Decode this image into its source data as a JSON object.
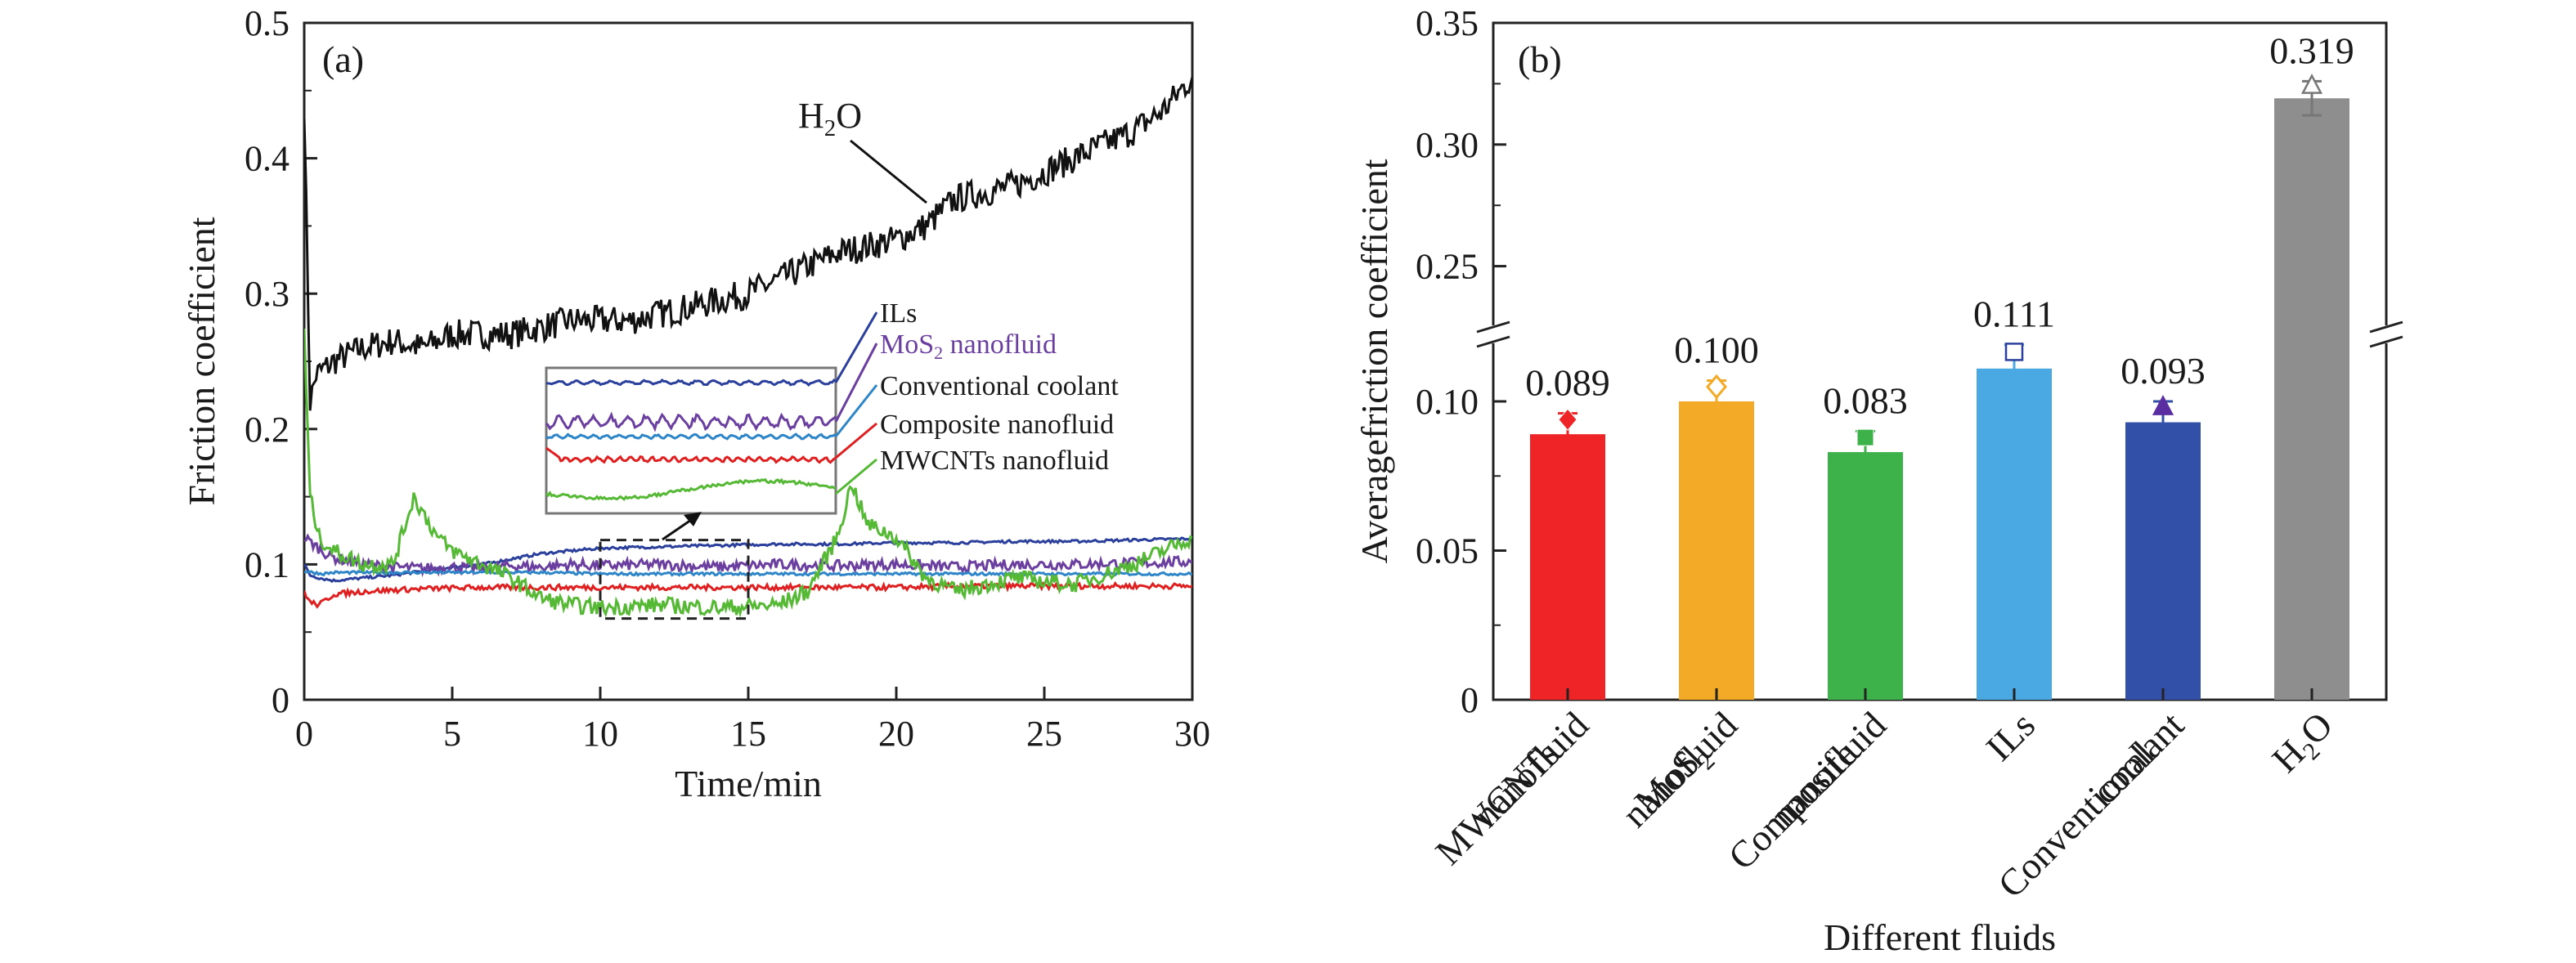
{
  "chart_data": [
    {
      "panel": "(a)",
      "type": "line",
      "xlabel": "Time/min",
      "ylabel": "Friction coefficient",
      "xlim": [
        0,
        30
      ],
      "ylim": [
        0,
        0.5
      ],
      "xticks": [
        "0",
        "5",
        "10",
        "15",
        "20",
        "25",
        "30"
      ],
      "yticks": [
        "0",
        "0.1",
        "0.2",
        "0.3",
        "0.4",
        "0.5"
      ],
      "grid": false,
      "series": [
        {
          "name": "H2O",
          "label_main": "H",
          "label_sub": "2",
          "label_end": "O",
          "color": "#111111",
          "x": [
            0,
            0.2,
            0.4,
            1,
            2,
            3,
            4,
            5,
            6,
            7,
            8,
            9,
            10,
            11,
            12,
            13,
            14,
            15,
            16,
            17,
            18,
            19,
            20,
            21,
            22,
            23,
            24,
            25,
            26,
            27,
            28,
            29,
            30
          ],
          "y": [
            0.44,
            0.22,
            0.24,
            0.25,
            0.26,
            0.265,
            0.26,
            0.27,
            0.27,
            0.27,
            0.275,
            0.28,
            0.28,
            0.28,
            0.285,
            0.29,
            0.295,
            0.3,
            0.31,
            0.32,
            0.33,
            0.335,
            0.34,
            0.35,
            0.37,
            0.375,
            0.38,
            0.39,
            0.4,
            0.41,
            0.42,
            0.435,
            0.46
          ]
        },
        {
          "name": "ILs",
          "color": "#2b3f9c",
          "x": [
            0,
            0.2,
            0.5,
            1,
            2,
            3,
            4,
            5,
            6,
            7,
            8,
            9,
            10,
            12,
            14,
            16,
            18,
            20,
            22,
            24,
            26,
            28,
            30
          ],
          "y": [
            0.1,
            0.092,
            0.09,
            0.088,
            0.09,
            0.092,
            0.095,
            0.098,
            0.1,
            0.104,
            0.108,
            0.11,
            0.112,
            0.113,
            0.114,
            0.115,
            0.115,
            0.116,
            0.116,
            0.117,
            0.117,
            0.118,
            0.119
          ]
        },
        {
          "name": "MoS2 nanofluid",
          "label_main": "MoS",
          "label_sub": "2",
          "label_end": " nanofluid",
          "color": "#6b3fa0",
          "x": [
            0,
            0.3,
            0.6,
            1,
            2,
            3,
            4,
            5,
            6,
            7,
            8,
            9,
            10,
            12,
            14,
            16,
            18,
            20,
            22,
            24,
            26,
            28,
            30
          ],
          "y": [
            0.12,
            0.115,
            0.11,
            0.105,
            0.1,
            0.098,
            0.097,
            0.098,
            0.097,
            0.099,
            0.098,
            0.1,
            0.099,
            0.1,
            0.098,
            0.1,
            0.099,
            0.1,
            0.098,
            0.1,
            0.1,
            0.101,
            0.102
          ]
        },
        {
          "name": "Conventional coolant",
          "color": "#2e86c8",
          "x": [
            0,
            0.3,
            0.6,
            1,
            2,
            4,
            6,
            8,
            10,
            12,
            14,
            16,
            18,
            20,
            22,
            24,
            26,
            28,
            30
          ],
          "y": [
            0.095,
            0.094,
            0.093,
            0.094,
            0.094,
            0.094,
            0.094,
            0.094,
            0.093,
            0.093,
            0.093,
            0.093,
            0.093,
            0.093,
            0.093,
            0.093,
            0.093,
            0.093,
            0.093
          ]
        },
        {
          "name": "Composite nanofluid",
          "color": "#e02020",
          "x": [
            0,
            0.2,
            0.5,
            1,
            2,
            4,
            6,
            8,
            10,
            12,
            14,
            16,
            18,
            20,
            22,
            24,
            26,
            28,
            30
          ],
          "y": [
            0.08,
            0.072,
            0.07,
            0.078,
            0.08,
            0.082,
            0.083,
            0.083,
            0.083,
            0.083,
            0.083,
            0.083,
            0.083,
            0.083,
            0.084,
            0.084,
            0.084,
            0.084,
            0.084
          ]
        },
        {
          "name": "MWCNTs nanofluid",
          "color": "#55b935",
          "x": [
            0,
            0.2,
            0.5,
            1,
            2,
            3,
            3.7,
            4.5,
            5,
            6,
            7,
            8,
            9,
            10,
            12,
            14,
            16,
            17,
            18,
            18.5,
            19,
            20,
            21,
            22,
            24,
            26,
            28,
            30
          ],
          "y": [
            0.27,
            0.15,
            0.12,
            0.11,
            0.1,
            0.1,
            0.15,
            0.12,
            0.11,
            0.1,
            0.09,
            0.075,
            0.07,
            0.068,
            0.07,
            0.068,
            0.07,
            0.08,
            0.12,
            0.16,
            0.13,
            0.12,
            0.09,
            0.08,
            0.09,
            0.085,
            0.1,
            0.12
          ]
        }
      ],
      "inset_region": {
        "x": [
          10,
          15
        ],
        "y": [
          0.06,
          0.118
        ]
      }
    },
    {
      "panel": "(b)",
      "type": "bar",
      "xlabel": "Different fluids",
      "ylabel": "Averagefriction coefficient",
      "ylim": [
        0,
        0.35
      ],
      "axis_break": [
        0.12,
        0.225
      ],
      "yticks": [
        "0",
        "0.05",
        "0.10",
        "0.25",
        "0.30",
        "0.35"
      ],
      "categories": [
        {
          "lines": [
            "MWCNTs",
            "nanofluid"
          ],
          "sub": null
        },
        {
          "lines": [
            "MoS2",
            "nanofluid"
          ],
          "main": "MoS",
          "sub": "2"
        },
        {
          "lines": [
            "Composite",
            "nanofluid"
          ],
          "sub": null
        },
        {
          "lines": [
            "ILs"
          ],
          "sub": null
        },
        {
          "lines": [
            "Conventional",
            "coolant"
          ],
          "sub": null
        },
        {
          "lines": [
            "H2O"
          ],
          "main": "H",
          "sub": "2",
          "end": "O"
        }
      ],
      "values": [
        0.089,
        0.1,
        0.083,
        0.111,
        0.093,
        0.319
      ],
      "value_labels": [
        "0.089",
        "0.100",
        "0.083",
        "0.111",
        "0.093",
        "0.319"
      ],
      "errors": [
        0.007,
        0.007,
        0.007,
        0.008,
        0.007,
        0.007
      ],
      "colors": [
        "#ee2426",
        "#f3aa27",
        "#3db24a",
        "#4aa8e3",
        "#3250a8",
        "#8e8e8e"
      ],
      "markers": [
        "diamond-filled",
        "diamond-open",
        "square-filled",
        "square-open",
        "triangle-filled",
        "triangle-open"
      ]
    }
  ]
}
